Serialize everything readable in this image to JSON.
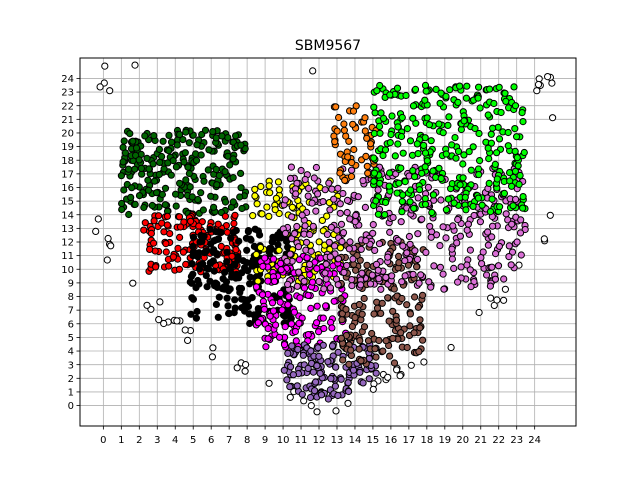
{
  "chart_data": {
    "type": "scatter",
    "title": "SBM9567",
    "xlabel": "",
    "ylabel": "",
    "xlim": [
      -1.3,
      26.3
    ],
    "ylim": [
      -1.5,
      25.5
    ],
    "x_ticks": [
      0,
      1,
      2,
      3,
      4,
      5,
      6,
      7,
      8,
      9,
      10,
      11,
      12,
      13,
      14,
      15,
      16,
      17,
      18,
      19,
      20,
      21,
      22,
      23,
      24
    ],
    "y_ticks": [
      0,
      1,
      2,
      3,
      4,
      5,
      6,
      7,
      8,
      9,
      10,
      11,
      12,
      13,
      14,
      15,
      16,
      17,
      18,
      19,
      20,
      21,
      22,
      23,
      24
    ],
    "grid": true,
    "legend": "none",
    "marker": {
      "shape": "circle",
      "edgecolor": "#000000"
    },
    "background_points": {
      "color": "#ffffff",
      "estimated_count": 70
    },
    "clusters": [
      {
        "color": "#006400",
        "x_range": [
          1.0,
          8.0
        ],
        "y_range": [
          14.0,
          20.2
        ],
        "estimated_count": 250
      },
      {
        "color": "#ff0000",
        "x_range": [
          2.2,
          7.5
        ],
        "y_range": [
          9.8,
          14.0
        ],
        "estimated_count": 140
      },
      {
        "color": "#000000",
        "x_range": [
          4.8,
          10.5
        ],
        "y_range": [
          6.0,
          13.0
        ],
        "estimated_count": 200
      },
      {
        "color": "#ffff00",
        "x_range": [
          8.3,
          13.3
        ],
        "y_range": [
          9.0,
          16.5
        ],
        "estimated_count": 110
      },
      {
        "color": "#ff00ff",
        "x_range": [
          8.5,
          13.5
        ],
        "y_range": [
          4.0,
          11.0
        ],
        "estimated_count": 170
      },
      {
        "color": "#9467bd",
        "x_range": [
          10.0,
          15.3
        ],
        "y_range": [
          0.0,
          4.5
        ],
        "estimated_count": 140
      },
      {
        "color": "#8c564b",
        "x_range": [
          13.2,
          17.8
        ],
        "y_range": [
          3.0,
          12.0
        ],
        "estimated_count": 190
      },
      {
        "color": "#da70d6",
        "x_range": [
          10.0,
          23.5
        ],
        "y_range": [
          8.5,
          17.5
        ],
        "estimated_count": 400
      },
      {
        "color": "#ff7f0e",
        "x_range": [
          12.8,
          15.2
        ],
        "y_range": [
          16.5,
          22.0
        ],
        "estimated_count": 55
      },
      {
        "color": "#00ff00",
        "x_range": [
          15.0,
          23.5
        ],
        "y_range": [
          14.0,
          23.5
        ],
        "estimated_count": 330
      }
    ]
  }
}
